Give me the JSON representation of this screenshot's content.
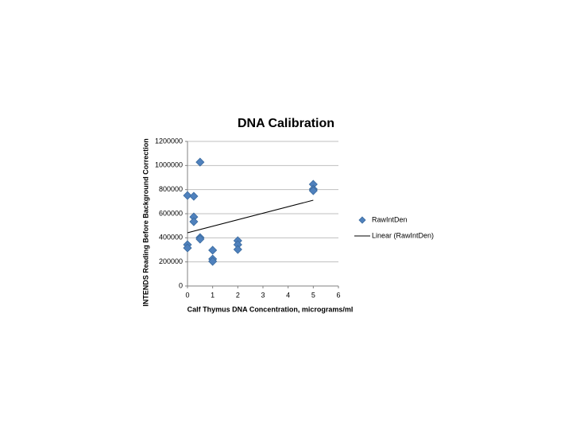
{
  "chart_data": {
    "type": "scatter",
    "title": "DNA Calibration",
    "x_label": "Calf Thymus DNA Concentration, micrograms/ml",
    "y_label": "INTENDS Reading Before Background Correction",
    "xlim": [
      0,
      6
    ],
    "xticks": [
      0,
      1,
      2,
      3,
      4,
      5,
      6
    ],
    "ylim": [
      0,
      1200000
    ],
    "yticks": [
      0,
      200000,
      400000,
      600000,
      800000,
      1000000,
      1200000
    ],
    "grid": true,
    "legend": "right",
    "series": [
      {
        "name": "RawIntDen",
        "type": "scatter",
        "color": "#4f81bd",
        "x": [
          0.5,
          0,
          0.25,
          0.25,
          0.25,
          0.5,
          0.5,
          0,
          0,
          1,
          1,
          1,
          2,
          2,
          2,
          5,
          5,
          5
        ],
        "values": [
          1028000,
          751000,
          745000,
          573000,
          534000,
          402000,
          389000,
          343000,
          316000,
          297000,
          224000,
          204000,
          376000,
          343000,
          303000,
          844000,
          804000,
          791000
        ]
      },
      {
        "name": "Linear (RawIntDen)",
        "type": "line",
        "color": "#000000",
        "x": [
          0,
          5
        ],
        "values": [
          442000,
          712000
        ]
      }
    ]
  }
}
